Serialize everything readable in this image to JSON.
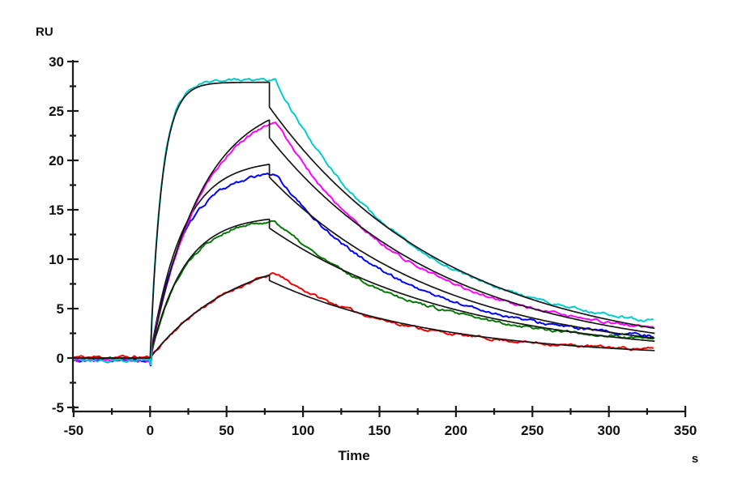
{
  "window": {
    "background": "#ffffff"
  },
  "chart_data": {
    "type": "line",
    "title": "",
    "ylabel": "RU",
    "xlabel": "Time",
    "x_unit": "s",
    "xlim": [
      -50,
      350
    ],
    "ylim": [
      -5,
      30
    ],
    "x_major_step": 50,
    "x_minor_step": 25,
    "y_major_step": 5,
    "y_minor_step": 2.5,
    "x_tick_labels": [
      "-50",
      "0",
      "50",
      "100",
      "150",
      "200",
      "250",
      "300",
      "350"
    ],
    "y_tick_labels": [
      "30",
      "25",
      "20",
      "15",
      "10",
      "5",
      "0",
      "-5"
    ],
    "grid": false,
    "legend": false,
    "axis_color": "#1a1a1a",
    "fit_color": "#161616",
    "injection": {
      "baseline_start_s": -50,
      "inject_start_s": 0,
      "fit_stop_s": 78,
      "data_stop_s": 82,
      "end_s": 330
    },
    "series": [
      {
        "name": "red-trace",
        "color": "#f00000",
        "baseline_offset": 0.08,
        "data_peak": 8.55,
        "assoc_k": 0.018,
        "fit_peak": 8.4,
        "ri_step": 0.55,
        "fit_kd": 0.0093,
        "dissoc": {
          "a": 0.85,
          "k1": 0.0135,
          "k2": 0.0028
        },
        "end_value": 0.95,
        "fit_end_value": 0.75,
        "seed": 11
      },
      {
        "name": "green-trace",
        "color": "#067806",
        "baseline_offset": -0.05,
        "data_peak": 13.85,
        "assoc_k": 0.046,
        "fit_peak": 14.05,
        "ri_step": 0.9,
        "fit_kd": 0.00812,
        "dissoc": {
          "a": 0.8,
          "k1": 0.0125,
          "k2": 0.0028
        },
        "end_value": 1.9,
        "fit_end_value": 1.7,
        "seed": 22
      },
      {
        "name": "blue-trace",
        "color": "#0000ff",
        "baseline_offset": -0.28,
        "data_peak": 18.65,
        "assoc_k": 0.048,
        "fit_peak": 19.6,
        "ri_step": 1.3,
        "fit_kd": 0.00876,
        "dissoc": {
          "a": 0.83,
          "k1": 0.013,
          "k2": 0.0028
        },
        "end_value": 2.1,
        "fit_end_value": 2.0,
        "seed": 33
      },
      {
        "name": "magenta-trace",
        "color": "#ff00ff",
        "baseline_offset": -0.2,
        "data_peak": 24.0,
        "assoc_k": 0.03,
        "fit_peak": 24.1,
        "ri_step": 1.8,
        "fit_kd": 0.00868,
        "dissoc": {
          "a": 0.82,
          "k1": 0.013,
          "k2": 0.0026
        },
        "end_value": 2.85,
        "fit_end_value": 2.5,
        "seed": 44
      },
      {
        "name": "cyan-trace",
        "color": "#00cccc",
        "baseline_offset": -0.18,
        "data_peak": 28.15,
        "assoc_k": 0.13,
        "fit_peak": 27.9,
        "ri_step": 2.5,
        "fit_kd": 0.00847,
        "dissoc": {
          "a": 0.8,
          "k1": 0.013,
          "k2": 0.0028
        },
        "end_value": 3.7,
        "fit_end_value": 3.0,
        "seed": 55
      }
    ]
  }
}
